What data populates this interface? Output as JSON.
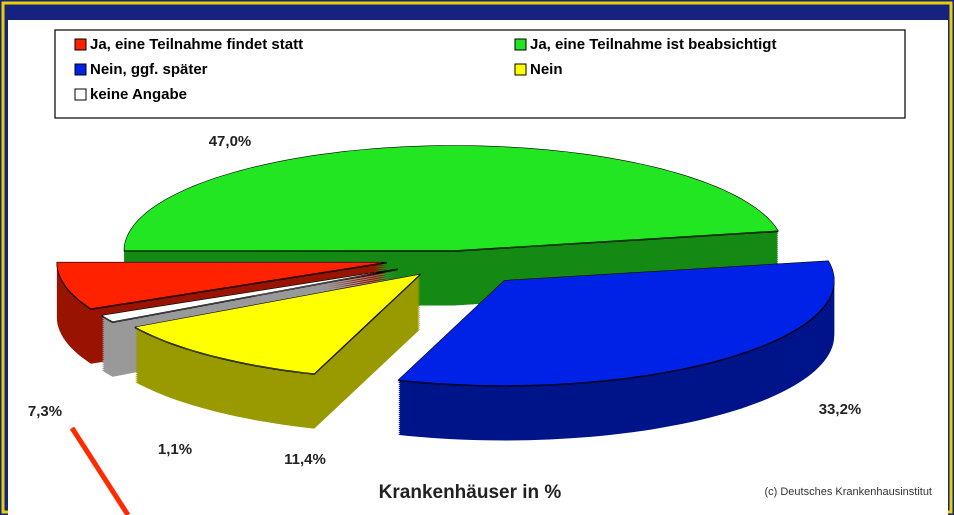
{
  "chart_data": {
    "type": "pie",
    "categories": [
      "Ja, eine Teilnahme findet statt",
      "Ja, eine Teilnahme ist beabsichtigt",
      "Nein,  ggf. später",
      "Nein",
      "keine Angabe"
    ],
    "values": [
      7.3,
      47.0,
      33.2,
      11.4,
      1.1
    ],
    "value_labels": [
      "7,3%",
      "47,0%",
      "33,2%",
      "11,4%",
      "1,1%"
    ],
    "colors": [
      "#ff2200",
      "#22e622",
      "#0022e6",
      "#ffff00",
      "#ffffff"
    ],
    "x_label": "Krankenhäuser in %",
    "source": "(c) Deutsches Krankenhausinstitut"
  }
}
